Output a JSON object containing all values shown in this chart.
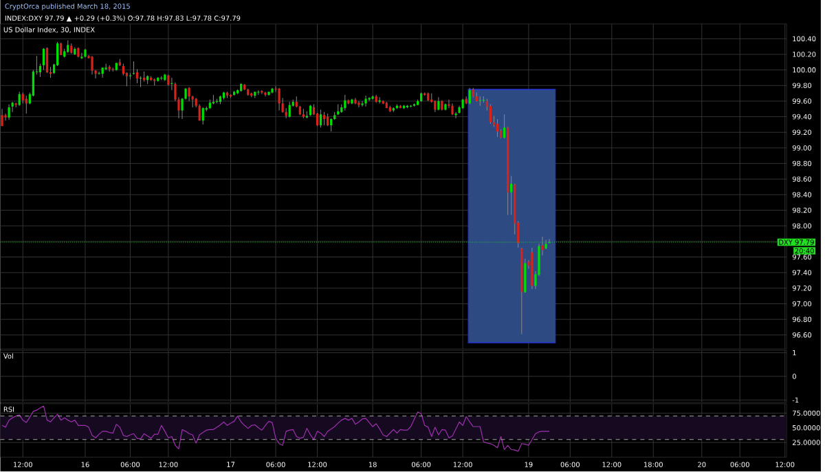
{
  "chart_data": [
    {
      "type": "candlestick",
      "title": "US Dollar Index, 30, INDEX",
      "subtitle": "INDEX:DXY 97.79 ▲ +0.29 (+0.3%) O:97.78 H:97.83 L:97.78 C:97.79",
      "annotations": [
        "CryptOrca published March 18, 2015",
        "20:40"
      ],
      "categories": [
        null,
        null,
        null,
        null,
        null,
        null,
        null,
        null,
        null,
        null,
        null,
        null,
        null,
        null,
        null,
        null,
        null,
        null,
        null,
        null,
        null,
        null,
        null,
        null,
        null,
        null,
        null,
        null,
        null,
        null,
        null,
        null,
        null,
        null,
        null,
        null,
        null,
        null,
        null,
        null,
        null,
        null,
        null,
        null,
        null,
        null,
        null,
        null,
        null,
        null,
        null,
        null,
        null,
        null,
        null,
        null,
        null,
        null,
        null,
        null,
        null,
        null,
        null,
        null,
        null,
        null,
        null,
        null,
        null,
        null,
        null,
        null,
        null,
        null,
        null,
        null,
        null,
        null,
        null,
        null,
        null,
        null,
        null,
        null,
        null,
        null,
        null,
        null,
        null,
        null,
        null,
        null,
        null,
        null,
        null,
        null,
        null,
        null,
        null,
        null,
        null,
        null,
        null,
        null,
        null,
        null,
        null,
        null,
        null,
        null,
        null,
        null,
        null,
        null,
        null,
        null,
        null,
        null,
        null,
        null,
        null,
        null,
        null,
        null,
        null,
        null,
        null,
        null,
        null,
        null,
        null,
        null,
        null,
        null,
        null,
        null,
        null,
        null,
        null,
        null,
        null,
        null,
        null,
        null,
        null,
        null,
        null,
        null,
        null,
        null,
        null,
        null,
        null,
        null,
        null,
        null,
        null,
        null,
        null,
        null,
        null,
        null,
        null,
        null,
        null,
        null,
        null,
        null,
        null,
        null,
        null,
        null,
        null,
        null,
        null,
        null,
        null,
        null,
        null,
        null,
        null,
        null,
        null,
        null,
        null,
        null,
        null,
        null,
        null,
        null,
        null,
        null,
        null,
        null,
        null,
        null,
        null,
        null,
        null,
        null,
        null,
        null,
        null,
        null,
        null,
        null,
        null,
        null,
        null,
        null,
        null,
        null,
        null,
        null,
        null,
        null,
        null,
        null,
        null,
        null,
        null,
        null,
        null,
        null,
        null,
        null,
        null
      ],
      "colors": [
        "#d8231b",
        "#d8231b",
        "#00e000",
        "#00e000",
        "#d8231b",
        "#00e000",
        "#d8231b",
        "#d8231b",
        "#00e000",
        "#00e000",
        "#00e000",
        "#00e000",
        "#00e000",
        "#d8231b",
        "#d8231b",
        "#00e000",
        "#00e000",
        "#d8231b",
        "#00e000",
        "#00e000",
        "#d8231b",
        "#00e000",
        "#d8231b",
        "#00e000",
        "#00e000",
        "#d8231b",
        "#d8231b",
        "#d8231b",
        "#00e000",
        "#00e000",
        "#00e000",
        "#d8231b",
        "#d8231b",
        "#00e000",
        "#d8231b",
        "#d8231b",
        "#d8231b",
        "#00e000",
        "#00e000",
        "#d8231b",
        "#00e000",
        "#d8231b",
        "#00e000",
        "#d8231b",
        "#d8231b",
        "#00e000",
        "#00e000",
        "#00e000",
        "#d8231b",
        "#00e000",
        "#d8231b",
        "#d8231b",
        "#00e000",
        "#00e000",
        "#d8231b",
        "#d8231b",
        "#d8231b",
        "#d8231b",
        "#00e000",
        "#00e000",
        "#00e000",
        "#00e000",
        "#00e000",
        "#00e000",
        "#00e000",
        "#d8231b",
        "#d8231b",
        "#00e000",
        "#00e000",
        "#00e000",
        "#d8231b",
        "#d8231b",
        "#d8231b",
        "#00e000",
        "#00e000",
        "#d8231b",
        "#d8231b",
        "#00e000",
        "#00e000",
        "#d8231b",
        "#d8231b",
        "#d8231b",
        "#d8231b",
        "#00e000",
        "#00e000",
        "#d8231b",
        "#d8231b",
        "#d8231b",
        "#00e000",
        "#00e000",
        "#d8231b",
        "#d8231b",
        "#00e000",
        "#d8231b",
        "#d8231b",
        "#00e000",
        "#00e000",
        "#00e000",
        "#00e000",
        "#00e000",
        "#d8231b",
        "#00e000",
        "#d8231b",
        "#d8231b",
        "#00e000",
        "#00e000",
        "#00e000",
        "#00e000",
        "#d8231b",
        "#00e000",
        "#d8231b",
        "#d8231b",
        "#d8231b",
        "#00e000",
        "#00e000",
        "#d8231b",
        "#00e000",
        "#00e000",
        "#00e000",
        "#00e000",
        "#00e000",
        "#00e000",
        "#d8231b",
        "#d8231b",
        "#d8231b",
        "#d8231b",
        "#00e000",
        "#d8231b",
        "#00e000",
        "#d8231b",
        "#d8231b",
        "#00e000",
        "#00e000",
        "#00e000",
        "#d8231b",
        "#00e000",
        "#d8231b",
        "#d8231b",
        "#00e000",
        "#00e000",
        "#d8231b",
        "#d8231b",
        "#d8231b",
        "#d8231b",
        "#d8231b",
        "#00e000",
        "#d8231b",
        "#00e000",
        "#d8231b",
        "#d8231b",
        "#d8231b",
        "#00e000",
        "#d8231b",
        "#d8231b",
        "#00e000",
        "#00e000",
        "#d8231b",
        "#00e000",
        "#00e000",
        null,
        null,
        null,
        null,
        null,
        null,
        null,
        null,
        null,
        null,
        null,
        null,
        null,
        null,
        null,
        null,
        null,
        null,
        null,
        null,
        null,
        null,
        null,
        null,
        null,
        null,
        null,
        null,
        null,
        null,
        null,
        null,
        null,
        null,
        null,
        null,
        null,
        null,
        null,
        null,
        null,
        null,
        null,
        null,
        null,
        null,
        null,
        null,
        null,
        null,
        null,
        null,
        null,
        null,
        null,
        null,
        null,
        null,
        null,
        null,
        null,
        null,
        null,
        null,
        null,
        null,
        null,
        null
      ],
      "ohlc": [
        [
          99.42,
          99.5,
          99.28,
          99.28
        ],
        [
          99.42,
          99.44,
          99.35,
          99.39
        ],
        [
          99.39,
          99.56,
          99.36,
          99.52
        ],
        [
          99.53,
          99.59,
          99.46,
          99.58
        ],
        [
          99.57,
          99.58,
          99.52,
          99.55
        ],
        [
          99.55,
          99.72,
          99.54,
          99.69
        ],
        [
          99.69,
          99.71,
          99.57,
          99.61
        ],
        [
          99.63,
          99.67,
          99.44,
          99.57
        ],
        [
          99.57,
          99.71,
          99.56,
          99.69
        ],
        [
          99.67,
          100.0,
          99.66,
          99.98
        ],
        [
          99.97,
          100.18,
          99.94,
          99.98
        ],
        [
          99.97,
          100.08,
          99.91,
          100.05
        ],
        [
          100.06,
          100.28,
          100.0,
          100.27
        ],
        [
          100.28,
          100.29,
          99.96,
          99.97
        ],
        [
          99.97,
          100.04,
          99.9,
          99.95
        ],
        [
          99.96,
          100.08,
          99.95,
          100.07
        ],
        [
          100.06,
          100.36,
          100.05,
          100.34
        ],
        [
          100.34,
          100.35,
          100.19,
          100.19
        ],
        [
          100.17,
          100.27,
          100.16,
          100.24
        ],
        [
          100.23,
          100.38,
          100.22,
          100.32
        ],
        [
          100.31,
          100.34,
          100.21,
          100.22
        ],
        [
          100.2,
          100.29,
          100.19,
          100.27
        ],
        [
          100.28,
          100.29,
          100.16,
          100.17
        ],
        [
          100.15,
          100.22,
          100.14,
          100.17
        ],
        [
          100.17,
          100.27,
          100.16,
          100.26
        ],
        [
          100.18,
          100.19,
          100.15,
          100.15
        ],
        [
          100.17,
          100.18,
          99.94,
          99.99
        ],
        [
          99.99,
          100.0,
          99.89,
          99.95
        ],
        [
          99.95,
          99.98,
          99.94,
          99.96
        ],
        [
          99.95,
          100.03,
          99.9,
          100.03
        ],
        [
          100.01,
          100.08,
          100.0,
          100.03
        ],
        [
          100.04,
          100.06,
          99.98,
          100.01
        ],
        [
          100.01,
          100.03,
          99.98,
          100.0
        ],
        [
          100.0,
          100.09,
          99.99,
          100.09
        ],
        [
          100.1,
          100.14,
          100.05,
          100.06
        ],
        [
          100.05,
          100.08,
          99.93,
          99.95
        ],
        [
          99.96,
          99.97,
          99.79,
          99.92
        ],
        [
          99.92,
          99.96,
          99.88,
          99.93
        ],
        [
          99.95,
          100.11,
          99.94,
          99.96
        ],
        [
          99.97,
          100.01,
          99.83,
          99.89
        ],
        [
          99.89,
          99.92,
          99.78,
          99.9
        ],
        [
          99.9,
          99.98,
          99.85,
          99.87
        ],
        [
          99.87,
          99.93,
          99.82,
          99.92
        ],
        [
          99.9,
          99.92,
          99.86,
          99.87
        ],
        [
          99.88,
          99.89,
          99.8,
          99.86
        ],
        [
          99.86,
          99.91,
          99.85,
          99.9
        ],
        [
          99.89,
          99.92,
          99.87,
          99.9
        ],
        [
          99.87,
          99.95,
          99.86,
          99.94
        ],
        [
          99.93,
          99.94,
          99.8,
          99.81
        ],
        [
          99.82,
          99.9,
          99.74,
          99.83
        ],
        [
          99.82,
          99.84,
          99.6,
          99.62
        ],
        [
          99.62,
          99.65,
          99.38,
          99.48
        ],
        [
          99.48,
          99.64,
          99.37,
          99.63
        ],
        [
          99.63,
          99.77,
          99.62,
          99.76
        ],
        [
          99.77,
          99.78,
          99.6,
          99.66
        ],
        [
          99.66,
          99.67,
          99.52,
          99.62
        ],
        [
          99.63,
          99.64,
          99.52,
          99.54
        ],
        [
          99.54,
          99.56,
          99.35,
          99.35
        ],
        [
          99.35,
          99.52,
          99.3,
          99.51
        ],
        [
          99.49,
          99.53,
          99.47,
          99.51
        ],
        [
          99.51,
          99.62,
          99.5,
          99.58
        ],
        [
          99.57,
          99.68,
          99.56,
          99.59
        ],
        [
          99.59,
          99.63,
          99.57,
          99.6
        ],
        [
          99.59,
          99.67,
          99.56,
          99.66
        ],
        [
          99.64,
          99.72,
          99.62,
          99.71
        ],
        [
          99.71,
          99.72,
          99.64,
          99.67
        ],
        [
          99.68,
          99.69,
          99.64,
          99.66
        ],
        [
          99.68,
          99.73,
          99.67,
          99.72
        ],
        [
          99.7,
          99.75,
          99.69,
          99.74
        ],
        [
          99.73,
          99.83,
          99.72,
          99.82
        ],
        [
          99.81,
          99.82,
          99.74,
          99.75
        ],
        [
          99.75,
          99.76,
          99.67,
          99.68
        ],
        [
          99.7,
          99.71,
          99.65,
          99.67
        ],
        [
          99.67,
          99.72,
          99.64,
          99.72
        ],
        [
          99.71,
          99.74,
          99.68,
          99.72
        ],
        [
          99.73,
          99.74,
          99.69,
          99.71
        ],
        [
          99.71,
          99.72,
          99.66,
          99.68
        ],
        [
          99.68,
          99.72,
          99.67,
          99.72
        ],
        [
          99.71,
          99.77,
          99.7,
          99.76
        ],
        [
          99.76,
          99.79,
          99.72,
          99.75
        ],
        [
          99.76,
          99.77,
          99.48,
          99.57
        ],
        [
          99.57,
          99.64,
          99.45,
          99.46
        ],
        [
          99.46,
          99.51,
          99.38,
          99.41
        ],
        [
          99.4,
          99.59,
          99.39,
          99.55
        ],
        [
          99.54,
          99.62,
          99.53,
          99.59
        ],
        [
          99.59,
          99.66,
          99.52,
          99.53
        ],
        [
          99.53,
          99.54,
          99.42,
          99.43
        ],
        [
          99.43,
          99.5,
          99.38,
          99.4
        ],
        [
          99.39,
          99.47,
          99.38,
          99.41
        ],
        [
          99.42,
          99.55,
          99.41,
          99.54
        ],
        [
          99.52,
          99.56,
          99.42,
          99.43
        ],
        [
          99.44,
          99.45,
          99.28,
          99.29
        ],
        [
          99.29,
          99.49,
          99.26,
          99.43
        ],
        [
          99.42,
          99.46,
          99.29,
          99.37
        ],
        [
          99.4,
          99.44,
          99.28,
          99.29
        ],
        [
          99.29,
          99.38,
          99.21,
          99.37
        ],
        [
          99.37,
          99.46,
          99.36,
          99.42
        ],
        [
          99.43,
          99.56,
          99.42,
          99.47
        ],
        [
          99.46,
          99.56,
          99.45,
          99.52
        ],
        [
          99.51,
          99.68,
          99.48,
          99.61
        ],
        [
          99.61,
          99.62,
          99.56,
          99.57
        ],
        [
          99.57,
          99.63,
          99.56,
          99.62
        ],
        [
          99.62,
          99.64,
          99.56,
          99.57
        ],
        [
          99.58,
          99.6,
          99.52,
          99.55
        ],
        [
          99.55,
          99.6,
          99.53,
          99.57
        ],
        [
          99.57,
          99.67,
          99.53,
          99.63
        ],
        [
          99.62,
          99.65,
          99.6,
          99.64
        ],
        [
          99.63,
          99.67,
          99.62,
          99.66
        ],
        [
          99.66,
          99.68,
          99.58,
          99.59
        ],
        [
          99.59,
          99.65,
          99.57,
          99.61
        ],
        [
          99.6,
          99.61,
          99.56,
          99.57
        ],
        [
          99.58,
          99.59,
          99.51,
          99.51
        ],
        [
          99.52,
          99.54,
          99.46,
          99.47
        ],
        [
          99.48,
          99.52,
          99.46,
          99.51
        ],
        [
          99.51,
          99.56,
          99.5,
          99.54
        ],
        [
          99.54,
          99.55,
          99.51,
          99.51
        ],
        [
          99.51,
          99.55,
          99.5,
          99.54
        ],
        [
          99.52,
          99.55,
          99.51,
          99.54
        ],
        [
          99.53,
          99.55,
          99.52,
          99.54
        ],
        [
          99.54,
          99.57,
          99.53,
          99.56
        ],
        [
          99.55,
          99.62,
          99.55,
          99.6
        ],
        [
          99.6,
          99.71,
          99.59,
          99.7
        ],
        [
          99.7,
          99.71,
          99.67,
          99.68
        ],
        [
          99.7,
          99.71,
          99.6,
          99.61
        ],
        [
          99.62,
          99.7,
          99.58,
          99.59
        ],
        [
          99.6,
          99.61,
          99.46,
          99.49
        ],
        [
          99.49,
          99.65,
          99.48,
          99.6
        ],
        [
          99.6,
          99.61,
          99.48,
          99.49
        ],
        [
          99.49,
          99.57,
          99.48,
          99.56
        ],
        [
          99.56,
          99.62,
          99.51,
          99.54
        ],
        [
          99.54,
          99.57,
          99.42,
          99.43
        ],
        [
          99.42,
          99.46,
          99.38,
          99.44
        ],
        [
          99.45,
          99.54,
          99.44,
          99.52
        ],
        [
          99.51,
          99.63,
          99.5,
          99.62
        ],
        [
          99.63,
          99.66,
          99.56,
          99.57
        ],
        [
          99.57,
          99.77,
          99.56,
          99.74
        ],
        [
          99.75,
          99.77,
          99.65,
          99.66
        ],
        [
          99.66,
          99.71,
          99.59,
          99.6
        ],
        [
          99.6,
          99.66,
          99.54,
          99.61
        ],
        [
          99.61,
          99.66,
          99.58,
          99.61
        ],
        [
          99.6,
          99.63,
          99.48,
          99.53
        ],
        [
          99.54,
          99.56,
          99.31,
          99.33
        ],
        [
          99.33,
          99.41,
          99.27,
          99.29
        ],
        [
          99.31,
          99.37,
          99.14,
          99.21
        ],
        [
          99.22,
          99.24,
          99.12,
          99.13
        ],
        [
          99.13,
          99.43,
          99.12,
          99.26
        ],
        [
          99.26,
          99.27,
          98.14,
          98.43
        ],
        [
          98.43,
          98.64,
          98.14,
          98.54
        ],
        [
          98.53,
          98.54,
          97.89,
          98.03
        ],
        [
          98.04,
          98.06,
          97.72,
          97.78
        ],
        [
          97.71,
          97.72,
          96.61,
          97.15
        ],
        [
          97.15,
          97.58,
          97.14,
          97.52
        ],
        [
          97.54,
          97.56,
          97.45,
          97.49
        ],
        [
          97.66,
          97.72,
          97.19,
          97.23
        ],
        [
          97.23,
          97.42,
          97.19,
          97.38
        ],
        [
          97.37,
          97.77,
          97.36,
          97.74
        ],
        [
          97.75,
          97.86,
          97.62,
          97.69
        ],
        [
          97.71,
          97.82,
          97.7,
          97.77
        ],
        [
          97.78,
          97.83,
          97.78,
          97.79
        ],
        null,
        null,
        null,
        null,
        null,
        null,
        null,
        null,
        null,
        null,
        null,
        null,
        null,
        null,
        null,
        null,
        null,
        null,
        null,
        null,
        null,
        null,
        null,
        null,
        null,
        null,
        null,
        null,
        null,
        null,
        null,
        null,
        null,
        null,
        null,
        null,
        null,
        null,
        null,
        null,
        null,
        null,
        null,
        null,
        null,
        null,
        null,
        null,
        null,
        null,
        null,
        null,
        null,
        null,
        null,
        null,
        null,
        null,
        null,
        null,
        null,
        null,
        null,
        null,
        null,
        null,
        null,
        null
      ],
      "ylim": [
        96.42,
        100.59
      ],
      "yticks": [
        {
          "value": 96.6,
          "label": "96.60"
        },
        {
          "value": 96.8,
          "label": "96.80"
        },
        {
          "value": 97.0,
          "label": "97.00"
        },
        {
          "value": 97.2,
          "label": "97.20"
        },
        {
          "value": 97.4,
          "label": "97.40"
        },
        {
          "value": 97.6,
          "label": "97.60"
        },
        {
          "value": 97.8,
          "label": null
        },
        {
          "value": 98.0,
          "label": "98.00"
        },
        {
          "value": 98.2,
          "label": "98.20"
        },
        {
          "value": 98.4,
          "label": "98.40"
        },
        {
          "value": 98.6,
          "label": "98.60"
        },
        {
          "value": 98.8,
          "label": "98.80"
        },
        {
          "value": 99.0,
          "label": "99.00"
        },
        {
          "value": 99.2,
          "label": "99.20"
        },
        {
          "value": 99.4,
          "label": "99.40"
        },
        {
          "value": 99.6,
          "label": "99.60"
        },
        {
          "value": 99.8,
          "label": "99.80"
        },
        {
          "value": 100.0,
          "label": "100.00"
        },
        {
          "value": 100.2,
          "label": "100.20"
        },
        {
          "value": 100.4,
          "label": "100.40"
        }
      ],
      "ref_lines": [
        {
          "axis": "y",
          "value": 97.79,
          "label": "DXY 97.79",
          "color": "#22dd22",
          "line_style": "dotted"
        }
      ],
      "grid": true,
      "tick_labels": "y"
    },
    {
      "type": "bar",
      "title": "Vol",
      "categories": [
        null,
        null,
        null,
        null,
        null,
        null,
        null,
        null,
        null,
        null,
        null,
        null,
        null,
        null,
        null,
        null,
        null,
        null,
        null,
        null,
        null,
        null,
        null,
        null,
        null,
        null,
        null,
        null,
        null,
        null,
        null,
        null,
        null,
        null,
        null,
        null,
        null,
        null,
        null,
        null,
        null,
        null,
        null,
        null,
        null,
        null,
        null,
        null,
        null,
        null,
        null,
        null,
        null,
        null,
        null,
        null,
        null,
        null,
        null,
        null,
        null,
        null,
        null,
        null,
        null,
        null,
        null,
        null,
        null,
        null,
        null,
        null,
        null,
        null,
        null,
        null,
        null,
        null,
        null,
        null,
        null,
        null,
        null,
        null,
        null,
        null,
        null,
        null,
        null,
        null,
        null,
        null,
        null,
        null,
        null,
        null,
        null,
        null,
        null,
        null,
        null,
        null,
        null,
        null,
        null,
        null,
        null,
        null,
        null,
        null,
        null,
        null,
        null,
        null,
        null,
        null,
        null,
        null,
        null,
        null,
        null,
        null,
        null,
        null,
        null,
        null,
        null,
        null,
        null,
        null,
        null,
        null,
        null,
        null,
        null,
        null,
        null,
        null,
        null,
        null,
        null,
        null,
        null,
        null,
        null,
        null,
        null,
        null,
        null,
        null,
        null,
        null,
        null,
        null,
        null,
        null,
        null,
        null,
        null,
        null,
        null,
        null,
        null,
        null,
        null,
        null,
        null,
        null,
        null,
        null,
        null,
        null,
        null,
        null,
        null,
        null,
        null,
        null,
        null,
        null,
        null,
        null,
        null,
        null,
        null,
        null,
        null,
        null,
        null,
        null,
        null,
        null,
        null,
        null,
        null,
        null,
        null,
        null,
        null,
        null,
        null,
        null,
        null,
        null,
        null,
        null,
        null,
        null,
        null,
        null,
        null,
        null,
        null,
        null,
        null,
        null,
        null,
        null,
        null,
        null,
        null,
        null,
        null,
        null,
        null,
        null,
        null
      ],
      "ylim": [
        -1.1,
        1.1
      ],
      "yticks": [
        -1,
        0,
        1
      ],
      "grid": true,
      "tick_labels": "y"
    },
    {
      "type": "line",
      "title": "RSI",
      "categories": [
        null,
        null,
        null,
        null,
        null,
        null,
        "12:00",
        null,
        null,
        null,
        null,
        null,
        null,
        null,
        null,
        null,
        null,
        null,
        null,
        null,
        null,
        null,
        null,
        null,
        "16",
        null,
        null,
        null,
        null,
        null,
        null,
        null,
        null,
        null,
        null,
        null,
        null,
        "06:00",
        null,
        null,
        null,
        null,
        null,
        null,
        null,
        null,
        null,
        null,
        "12:00",
        null,
        null,
        null,
        null,
        null,
        null,
        null,
        null,
        null,
        null,
        null,
        null,
        null,
        null,
        null,
        null,
        null,
        "17",
        null,
        null,
        null,
        null,
        null,
        null,
        null,
        null,
        null,
        null,
        null,
        null,
        "06:00",
        null,
        null,
        null,
        null,
        null,
        null,
        null,
        null,
        null,
        null,
        null,
        "12:00",
        null,
        null,
        null,
        null,
        null,
        null,
        null,
        null,
        null,
        null,
        null,
        null,
        null,
        null,
        null,
        "18",
        null,
        null,
        null,
        null,
        null,
        null,
        null,
        null,
        null,
        null,
        null,
        null,
        null,
        "06:00",
        null,
        null,
        null,
        null,
        null,
        null,
        null,
        null,
        null,
        null,
        null,
        "12:00",
        null,
        null,
        null,
        null,
        null,
        null,
        null,
        null,
        null,
        null,
        null,
        null,
        null,
        null,
        null,
        null,
        null,
        null,
        "19",
        null,
        null,
        null,
        null,
        null,
        null,
        null,
        null,
        null,
        null,
        null,
        "06:00",
        null,
        null,
        null,
        null,
        null,
        null,
        null,
        null,
        null,
        null,
        null,
        "12:00",
        null,
        null,
        null,
        null,
        null,
        null,
        null,
        null,
        null,
        null,
        null,
        "18:00",
        null,
        null,
        null,
        null,
        null,
        null,
        null,
        null,
        null,
        null,
        null,
        null,
        null,
        "20",
        null,
        null,
        null,
        null,
        null,
        null,
        null,
        null,
        null,
        null,
        "06:00",
        null,
        null,
        null,
        null,
        null,
        null,
        null,
        null,
        null,
        null,
        null,
        null,
        "12:00"
      ],
      "series": [
        {
          "color": "#a030b0",
          "values": [
            54,
            51,
            63,
            67,
            70,
            72,
            63,
            59,
            68,
            78,
            80,
            84,
            87,
            63,
            60,
            67,
            73,
            63,
            67,
            63,
            60,
            63,
            54,
            54,
            54,
            51,
            37,
            33,
            39,
            44,
            44,
            42,
            41,
            56,
            51,
            37,
            35,
            38,
            40,
            32,
            31,
            40,
            36,
            32,
            39,
            39,
            54,
            44,
            33,
            35,
            20,
            14,
            47,
            44,
            40,
            38,
            24,
            38,
            42,
            46,
            47,
            47,
            51,
            55,
            60,
            54,
            58,
            61,
            70,
            60,
            54,
            49,
            54,
            55,
            50,
            46,
            54,
            61,
            59,
            32,
            23,
            20,
            44,
            46,
            47,
            35,
            32,
            34,
            49,
            38,
            30,
            44,
            41,
            35,
            44,
            48,
            52,
            58,
            63,
            66,
            63,
            66,
            56,
            60,
            65,
            66,
            59,
            52,
            57,
            48,
            38,
            35,
            41,
            47,
            41,
            47,
            46,
            46,
            52,
            65,
            77,
            74,
            54,
            51,
            35,
            51,
            38,
            47,
            46,
            33,
            36,
            48,
            60,
            54,
            69,
            60,
            52,
            52,
            52,
            26,
            24,
            23,
            20,
            16,
            35,
            13,
            20,
            13,
            12,
            10,
            23,
            22,
            20,
            30,
            40,
            43,
            44,
            44,
            44,
            null,
            null,
            null,
            null,
            null,
            null,
            null,
            null,
            null,
            null,
            null,
            null,
            null,
            null,
            null,
            null,
            null,
            null,
            null,
            null,
            null,
            null,
            null,
            null,
            null,
            null,
            null,
            null,
            null,
            null,
            null,
            null,
            null,
            null,
            null,
            null,
            null,
            null,
            null,
            null,
            null,
            null,
            null,
            null,
            null,
            null,
            null,
            null,
            null,
            null,
            null,
            null,
            null,
            null,
            null,
            null,
            null,
            null,
            null,
            null,
            null,
            null,
            null,
            null,
            null,
            null,
            null,
            null
          ]
        }
      ],
      "ylim": [
        0,
        91
      ],
      "yticks": [
        {
          "value": 25,
          "label": "25.0000"
        },
        {
          "value": 50,
          "label": "50.0000"
        },
        {
          "value": 75,
          "label": "75.0000"
        }
      ],
      "bands": [
        {
          "axis": "y",
          "from": 30,
          "to": 70,
          "color": "#150a20"
        }
      ],
      "ref_lines": [
        {
          "axis": "y",
          "value": 70,
          "color": "#aaaaaa",
          "line_style": "dashed"
        },
        {
          "axis": "y",
          "value": 30,
          "color": "#aaaaaa",
          "line_style": "dashed"
        }
      ],
      "grid": true
    }
  ]
}
